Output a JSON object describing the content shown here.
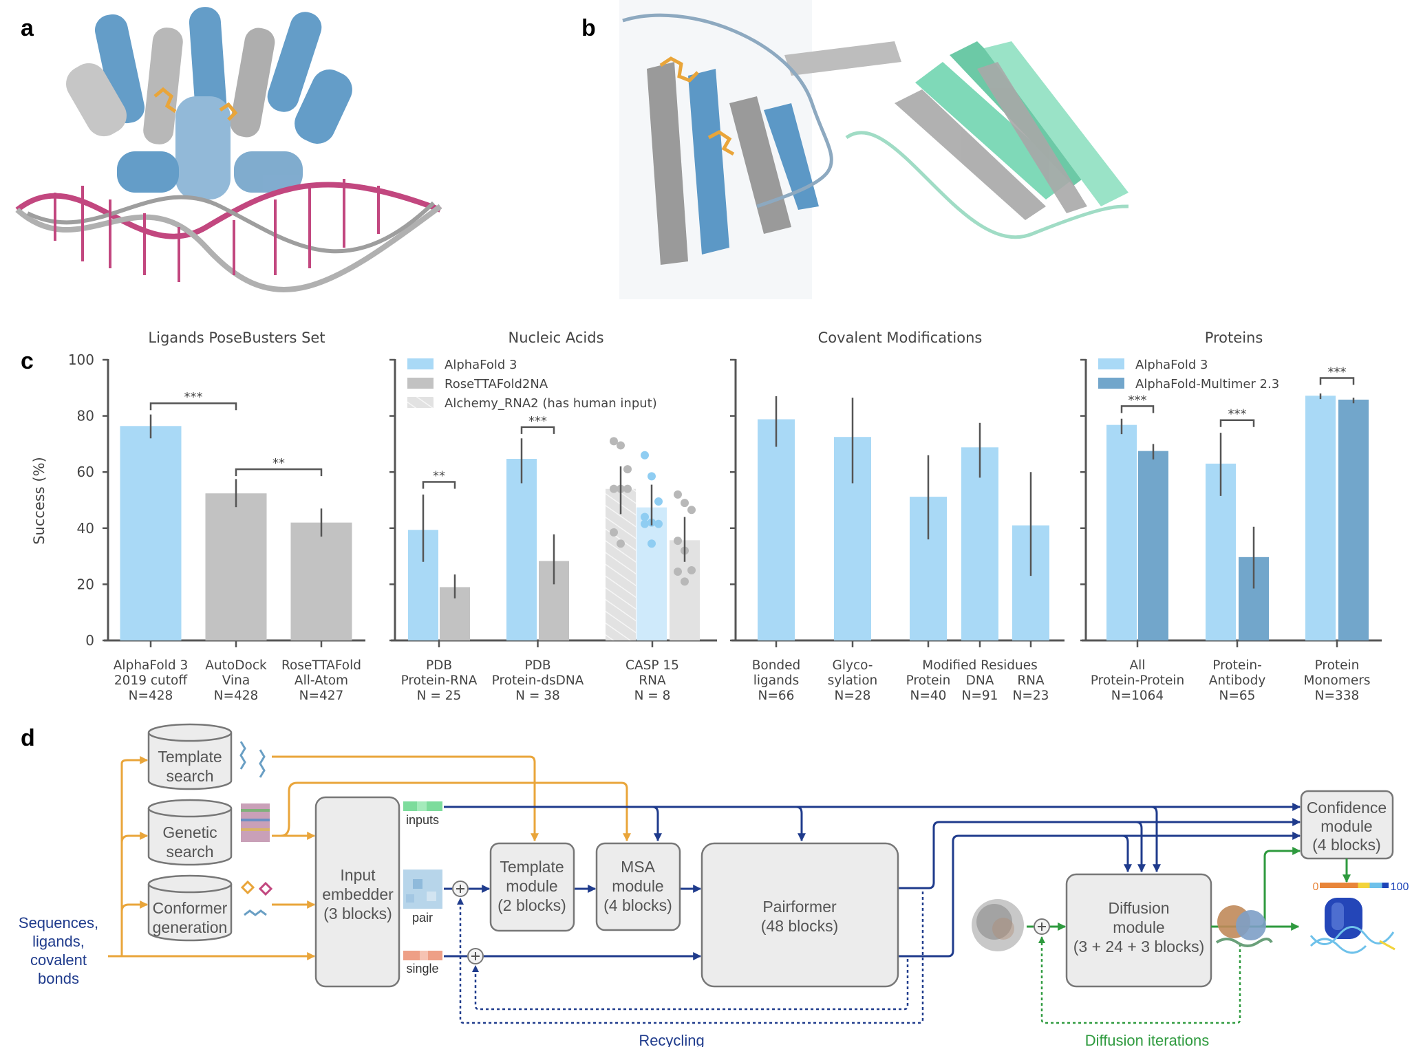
{
  "panel_labels": {
    "a": "a",
    "b": "b",
    "c": "c",
    "d": "d"
  },
  "colors": {
    "AlphaFold 3": "#a9d9f6",
    "RoseTTAFold2NA": "#c2c2c2",
    "Alchemy_RNA2 (has human input)": "#e2e2e2",
    "AutoDock Vina": "#c2c2c2",
    "RoseTTAFold All-Atom": "#c2c2c2",
    "AlphaFold-Multimer 2.3": "#72a6cb",
    "orange": "#e9a53a",
    "navy": "#1f3b8c",
    "green": "#2e9a3e"
  },
  "chart_data": [
    {
      "type": "bar",
      "title": "Ligands PoseBusters Set",
      "ylabel": "Success (%)",
      "ylim": [
        0,
        100
      ],
      "yticks": [
        "0",
        "20",
        "40",
        "60",
        "80",
        "100"
      ],
      "groups": [
        {
          "label": [
            "AlphaFold 3",
            "2019 cutoff",
            "N=428"
          ],
          "bars": [
            {
              "series": "AlphaFold 3",
              "value": 76.4,
              "ci": [
                72,
                80.5
              ]
            }
          ]
        },
        {
          "label": [
            "AutoDock",
            "Vina",
            "N=428"
          ],
          "bars": [
            {
              "series": "AutoDock Vina",
              "value": 52.4,
              "ci": [
                47.5,
                57.5
              ]
            }
          ]
        },
        {
          "label": [
            "RoseTTAFold",
            "All-Atom",
            "N=427"
          ],
          "bars": [
            {
              "series": "RoseTTAFold All-Atom",
              "value": 42,
              "ci": [
                37,
                47
              ]
            }
          ]
        }
      ],
      "significance": [
        {
          "bars": [
            0,
            1
          ],
          "y": 84.5,
          "label": "***"
        },
        {
          "bars": [
            1,
            2
          ],
          "y": 61,
          "label": "**"
        }
      ]
    },
    {
      "type": "bar",
      "title": "Nucleic Acids",
      "ylim": [
        0,
        100
      ],
      "legend": {
        "placement": "top-left",
        "entries": [
          "AlphaFold 3",
          "RoseTTAFold2NA",
          "Alchemy_RNA2 (has human input)"
        ]
      },
      "groups": [
        {
          "label": [
            "PDB",
            "Protein-RNA",
            "N = 25"
          ],
          "bars": [
            {
              "series": "AlphaFold 3",
              "value": 39.4,
              "ci": [
                28,
                52
              ]
            },
            {
              "series": "RoseTTAFold2NA",
              "value": 19,
              "ci": [
                15,
                23.5
              ]
            }
          ]
        },
        {
          "label": [
            "PDB",
            "Protein-dsDNA",
            "N = 38"
          ],
          "bars": [
            {
              "series": "AlphaFold 3",
              "value": 64.7,
              "ci": [
                56,
                72
              ]
            },
            {
              "series": "RoseTTAFold2NA",
              "value": 28.3,
              "ci": [
                20,
                37.8
              ]
            }
          ]
        },
        {
          "label": [
            "CASP 15",
            "RNA",
            "N = 8"
          ],
          "bars": [
            {
              "series": "Alchemy_RNA2 (has human input)",
              "value": 54,
              "ci": [
                45,
                62
              ],
              "hatched": true,
              "dots": [
                71,
                69.5,
                61,
                54,
                54,
                54,
                38.5,
                34.5
              ]
            },
            {
              "series": "AlphaFold 3",
              "value": 47.4,
              "ci": [
                41,
                55.5
              ],
              "faded": true,
              "dots": [
                66,
                58.5,
                49.5,
                44,
                42,
                41.5,
                41.5,
                34.5
              ]
            },
            {
              "series": "RoseTTAFold2NA",
              "value": 35.7,
              "ci": [
                28,
                44
              ],
              "faded": true,
              "dots": [
                52,
                49,
                46.5,
                35.5,
                32,
                25,
                24.5,
                21
              ]
            }
          ]
        }
      ],
      "significance": [
        {
          "bars": [
            0,
            1
          ],
          "y": 56.5,
          "label": "**"
        },
        {
          "bars": [
            2,
            3
          ],
          "y": 76,
          "label": "***"
        }
      ]
    },
    {
      "type": "bar",
      "title": "Covalent Modifications",
      "ylim": [
        0,
        100
      ],
      "supergroup_label": "Modified Residues",
      "groups": [
        {
          "label": [
            "Bonded",
            "ligands",
            "N=66"
          ],
          "bars": [
            {
              "series": "AlphaFold 3",
              "value": 78.8,
              "ci": [
                69,
                87
              ]
            }
          ]
        },
        {
          "label": [
            "Glyco-",
            "sylation",
            "N=28"
          ],
          "bars": [
            {
              "series": "AlphaFold 3",
              "value": 72.5,
              "ci": [
                56,
                86.5
              ]
            }
          ]
        },
        {
          "label": [
            "",
            "Protein",
            "N=40"
          ],
          "bars": [
            {
              "series": "AlphaFold 3",
              "value": 51.2,
              "ci": [
                36,
                66
              ]
            }
          ]
        },
        {
          "label": [
            "",
            "DNA",
            "N=91"
          ],
          "bars": [
            {
              "series": "AlphaFold 3",
              "value": 68.8,
              "ci": [
                58,
                77.5
              ]
            }
          ]
        },
        {
          "label": [
            "",
            "RNA",
            "N=23"
          ],
          "bars": [
            {
              "series": "AlphaFold 3",
              "value": 41,
              "ci": [
                23,
                60
              ]
            }
          ]
        }
      ],
      "significance": []
    },
    {
      "type": "bar",
      "title": "Proteins",
      "ylim": [
        0,
        100
      ],
      "legend": {
        "placement": "top-left",
        "entries": [
          "AlphaFold 3",
          "AlphaFold-Multimer 2.3"
        ]
      },
      "groups": [
        {
          "label": [
            "All",
            "Protein-Protein",
            "N=1064"
          ],
          "bars": [
            {
              "series": "AlphaFold 3",
              "value": 76.8,
              "ci": [
                73.5,
                79
              ]
            },
            {
              "series": "AlphaFold-Multimer 2.3",
              "value": 67.5,
              "ci": [
                64.5,
                70
              ]
            }
          ]
        },
        {
          "label": [
            "Protein-",
            "Antibody",
            "N=65"
          ],
          "bars": [
            {
              "series": "AlphaFold 3",
              "value": 63,
              "ci": [
                51.5,
                74
              ]
            },
            {
              "series": "AlphaFold-Multimer 2.3",
              "value": 29.7,
              "ci": [
                18.5,
                40.5
              ]
            }
          ]
        },
        {
          "label": [
            "Protein",
            "Monomers",
            "N=338"
          ],
          "bars": [
            {
              "series": "AlphaFold 3",
              "value": 87.2,
              "ci": [
                86,
                88
              ]
            },
            {
              "series": "AlphaFold-Multimer 2.3",
              "value": 85.8,
              "ci": [
                84.5,
                86.5
              ]
            }
          ]
        }
      ],
      "significance": [
        {
          "bars": [
            0,
            1
          ],
          "y": 83.5,
          "label": "***"
        },
        {
          "bars": [
            2,
            3
          ],
          "y": 78.5,
          "label": "***"
        },
        {
          "bars": [
            4,
            5
          ],
          "y": 93.5,
          "label": "***"
        }
      ]
    }
  ],
  "diagram": {
    "template_search": [
      "Template",
      "search"
    ],
    "genetic_search": [
      "Genetic",
      "search"
    ],
    "conformer_generation": [
      "Conformer",
      "generation"
    ],
    "input_text": [
      "Sequences,",
      "ligands,",
      "covalent",
      "bonds"
    ],
    "input_embedder": [
      "Input",
      "embedder",
      "(3 blocks)"
    ],
    "inputs_label": "inputs",
    "pair_label": "pair",
    "single_label": "single",
    "template_module": [
      "Template",
      "module",
      "(2 blocks)"
    ],
    "msa_module": [
      "MSA",
      "module",
      "(4 blocks)"
    ],
    "pairformer": [
      "Pairformer",
      "(48 blocks)"
    ],
    "diffusion_module": [
      "Diffusion",
      "module",
      "(3 + 24 + 3 blocks)"
    ],
    "confidence_module": [
      "Confidence",
      "module",
      "(4 blocks)"
    ],
    "confidence_scale": {
      "min": "0",
      "max": "100"
    },
    "recycling_label": "Recycling",
    "diffusion_iterations_label": "Diffusion iterations"
  }
}
